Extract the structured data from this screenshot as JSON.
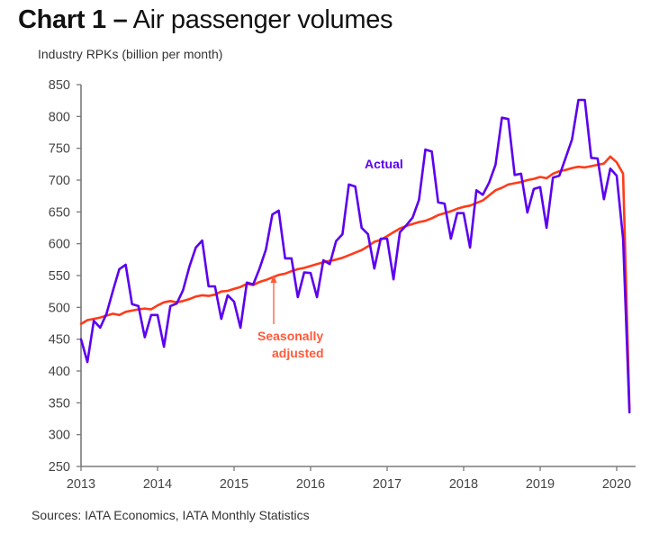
{
  "header": {
    "title_bold": "Chart 1 –",
    "title_rest": "Air passenger volumes"
  },
  "footer": {
    "source": "Sources: IATA Economics, IATA Monthly Statistics"
  },
  "chart_data": {
    "type": "line",
    "title": "Chart 1 – Air passenger volumes",
    "ylabel": "Industry RPKs (billion per month)",
    "xlabel": "",
    "ylim": [
      250,
      850
    ],
    "yticks": [
      250,
      300,
      350,
      400,
      450,
      500,
      550,
      600,
      650,
      700,
      750,
      800,
      850
    ],
    "xlim": [
      2013.0,
      2020.25
    ],
    "xticks": [
      2013,
      2014,
      2015,
      2016,
      2017,
      2018,
      2019,
      2020
    ],
    "xtick_labels": [
      "2013",
      "2014",
      "2015",
      "2016",
      "2017",
      "2018",
      "2019",
      "2020"
    ],
    "grid": false,
    "x_start": "2013-01",
    "x_frequency": "monthly",
    "colors": {
      "actual": "#5b00f0",
      "seasonally_adjusted": "#ff3b1a",
      "axis": "#7a7a7a"
    },
    "series": [
      {
        "name": "Actual",
        "values": [
          450,
          414,
          479,
          468,
          490,
          526,
          560,
          567,
          505,
          502,
          453,
          488,
          488,
          438,
          502,
          506,
          527,
          564,
          594,
          605,
          533,
          533,
          482,
          519,
          509,
          468,
          539,
          536,
          561,
          591,
          646,
          652,
          577,
          577,
          516,
          555,
          554,
          516,
          574,
          568,
          604,
          615,
          693,
          690,
          625,
          615,
          561,
          608,
          608,
          544,
          618,
          629,
          641,
          669,
          748,
          745,
          665,
          663,
          608,
          648,
          648,
          594,
          684,
          677,
          696,
          724,
          798,
          796,
          708,
          710,
          649,
          686,
          689,
          625,
          704,
          707,
          735,
          764,
          826,
          826,
          735,
          734,
          670,
          718,
          707,
          608,
          335
        ]
      },
      {
        "name": "Seasonally adjusted",
        "values": [
          474,
          480,
          482,
          484,
          487,
          490,
          488,
          493,
          495,
          497,
          498,
          497,
          503,
          508,
          510,
          508,
          510,
          513,
          517,
          519,
          518,
          520,
          525,
          526,
          529,
          532,
          537,
          535,
          540,
          543,
          547,
          551,
          553,
          557,
          560,
          562,
          565,
          568,
          571,
          573,
          575,
          578,
          582,
          586,
          590,
          596,
          603,
          606,
          612,
          618,
          624,
          628,
          631,
          634,
          636,
          640,
          645,
          648,
          651,
          655,
          658,
          660,
          664,
          668,
          676,
          684,
          688,
          693,
          695,
          697,
          700,
          702,
          705,
          703,
          710,
          714,
          716,
          719,
          721,
          720,
          722,
          724,
          726,
          737,
          728,
          710,
          340
        ]
      }
    ],
    "annotations": [
      {
        "text": "Actual",
        "series": "Actual",
        "near": "2016-10, ~735"
      },
      {
        "text_lines": [
          "Seasonally",
          "adjusted"
        ],
        "series": "Seasonally adjusted",
        "arrow_to": "2015-08"
      }
    ]
  }
}
